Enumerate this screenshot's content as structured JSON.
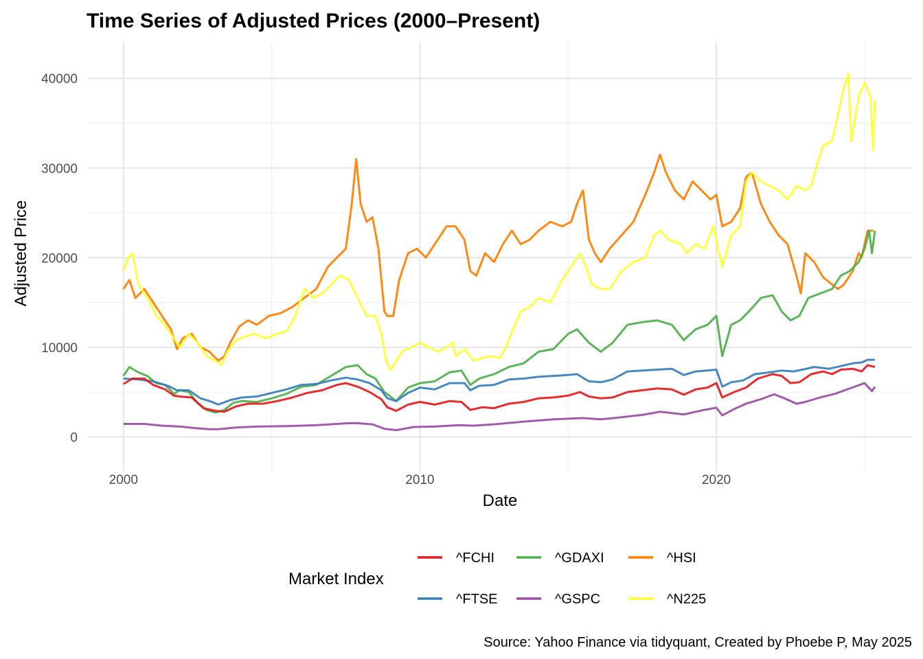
{
  "chart_data": {
    "type": "line",
    "title": "Time Series of Adjusted Prices (2000–Present)",
    "xlabel": "Date",
    "ylabel": "Adjusted Price",
    "xlim": [
      1998.8,
      2026.6
    ],
    "ylim": [
      -3800,
      44000
    ],
    "x_ticks": [
      2000,
      2010,
      2020
    ],
    "x_tick_labels": [
      "2000",
      "2010",
      "2020"
    ],
    "y_ticks": [
      0,
      10000,
      20000,
      30000,
      40000
    ],
    "y_tick_labels": [
      "0",
      "10000",
      "20000",
      "30000",
      "40000"
    ],
    "grid": true,
    "legend": {
      "title": "Market Index",
      "position": "bottom",
      "entries": [
        "^FCHI",
        "^GDAXI",
        "^HSI",
        "^FTSE",
        "^GSPC",
        "^N225"
      ]
    },
    "caption": "Source: Yahoo Finance via tidyquant, Created by Phoebe P, May 2025",
    "series": [
      {
        "name": "^HSI",
        "color": "#ff7f00",
        "x": [
          2000.0,
          2000.2,
          2000.4,
          2000.7,
          2001.0,
          2001.3,
          2001.6,
          2001.8,
          2002.0,
          2002.3,
          2002.6,
          2002.9,
          2003.2,
          2003.4,
          2003.6,
          2003.9,
          2004.2,
          2004.5,
          2004.9,
          2005.3,
          2005.7,
          2006.1,
          2006.5,
          2006.9,
          2007.2,
          2007.5,
          2007.7,
          2007.85,
          2008.0,
          2008.2,
          2008.4,
          2008.6,
          2008.8,
          2008.9,
          2009.1,
          2009.3,
          2009.6,
          2009.9,
          2010.2,
          2010.5,
          2010.9,
          2011.2,
          2011.5,
          2011.7,
          2011.9,
          2012.2,
          2012.5,
          2012.8,
          2013.1,
          2013.4,
          2013.7,
          2014.0,
          2014.4,
          2014.8,
          2015.1,
          2015.3,
          2015.5,
          2015.7,
          2015.9,
          2016.1,
          2016.4,
          2016.8,
          2017.2,
          2017.6,
          2017.9,
          2018.1,
          2018.3,
          2018.6,
          2018.9,
          2019.2,
          2019.5,
          2019.8,
          2020.0,
          2020.2,
          2020.5,
          2020.8,
          2021.0,
          2021.2,
          2021.5,
          2021.8,
          2022.1,
          2022.4,
          2022.7,
          2022.85,
          2023.0,
          2023.3,
          2023.6,
          2023.9,
          2024.1,
          2024.3,
          2024.6,
          2024.8,
          2024.9,
          2025.1,
          2025.3
        ],
        "y": [
          16500,
          17500,
          15500,
          16500,
          15000,
          13500,
          12000,
          9800,
          11000,
          11500,
          10000,
          9500,
          8500,
          9000,
          10500,
          12300,
          13000,
          12500,
          13500,
          13800,
          14500,
          15500,
          16500,
          19000,
          20000,
          21000,
          26000,
          31000,
          26000,
          24000,
          24500,
          21000,
          14000,
          13500,
          13500,
          17500,
          20500,
          21000,
          20000,
          21500,
          23500,
          23500,
          22000,
          18500,
          18000,
          20500,
          19500,
          21500,
          23000,
          21500,
          22000,
          23000,
          24000,
          23500,
          24000,
          26000,
          27500,
          22000,
          20500,
          19500,
          21000,
          22500,
          24000,
          27000,
          29500,
          31500,
          29500,
          27500,
          26500,
          28500,
          27500,
          26500,
          27000,
          23500,
          24000,
          25500,
          29000,
          29500,
          26000,
          24000,
          22500,
          21500,
          18000,
          16000,
          20500,
          19500,
          17800,
          17000,
          16500,
          17000,
          18500,
          20500,
          20000,
          23000,
          23000
        ]
      },
      {
        "name": "^N225",
        "color": "#ffff33",
        "x": [
          2000.0,
          2000.15,
          2000.3,
          2000.5,
          2000.7,
          2000.9,
          2001.1,
          2001.4,
          2001.7,
          2001.9,
          2002.2,
          2002.5,
          2002.8,
          2003.1,
          2003.3,
          2003.5,
          2003.8,
          2004.1,
          2004.4,
          2004.8,
          2005.2,
          2005.5,
          2005.8,
          2006.1,
          2006.4,
          2006.7,
          2007.0,
          2007.3,
          2007.6,
          2007.9,
          2008.2,
          2008.5,
          2008.7,
          2008.85,
          2009.0,
          2009.2,
          2009.4,
          2009.7,
          2010.0,
          2010.3,
          2010.6,
          2010.9,
          2011.1,
          2011.2,
          2011.5,
          2011.8,
          2012.1,
          2012.4,
          2012.7,
          2012.9,
          2013.2,
          2013.4,
          2013.7,
          2014.0,
          2014.4,
          2014.8,
          2015.1,
          2015.4,
          2015.6,
          2015.8,
          2016.1,
          2016.4,
          2016.8,
          2017.2,
          2017.6,
          2017.9,
          2018.1,
          2018.4,
          2018.8,
          2019.0,
          2019.3,
          2019.6,
          2019.9,
          2020.05,
          2020.2,
          2020.5,
          2020.8,
          2021.0,
          2021.2,
          2021.5,
          2021.8,
          2022.1,
          2022.4,
          2022.7,
          2023.0,
          2023.2,
          2023.4,
          2023.6,
          2023.9,
          2024.1,
          2024.3,
          2024.45,
          2024.55,
          2024.8,
          2025.0,
          2025.2,
          2025.28,
          2025.35
        ],
        "y": [
          18500,
          20000,
          20500,
          17000,
          16000,
          15000,
          13500,
          12500,
          11000,
          10000,
          11500,
          10500,
          9000,
          8500,
          8000,
          9500,
          10800,
          11200,
          11500,
          11000,
          11500,
          11800,
          13500,
          16500,
          15500,
          16000,
          17000,
          18000,
          17500,
          15500,
          13500,
          13500,
          11500,
          8500,
          7500,
          8500,
          9500,
          10000,
          10500,
          10000,
          9500,
          10000,
          10500,
          9000,
          9800,
          8500,
          8800,
          9000,
          8800,
          10000,
          12500,
          14000,
          14500,
          15500,
          15000,
          17500,
          19000,
          20500,
          19000,
          17000,
          16500,
          16500,
          18500,
          19500,
          20000,
          22500,
          23000,
          22000,
          21500,
          20500,
          21500,
          21000,
          23500,
          21000,
          19000,
          22500,
          23500,
          28500,
          29500,
          28500,
          28000,
          27500,
          26500,
          28000,
          27500,
          28000,
          30500,
          32500,
          33000,
          36000,
          39000,
          40500,
          33000,
          38000,
          39500,
          38000,
          32000,
          37500
        ]
      },
      {
        "name": "^GDAXI",
        "color": "#4daf4a",
        "x": [
          2000.0,
          2000.2,
          2000.5,
          2000.8,
          2001.1,
          2001.4,
          2001.7,
          2001.9,
          2002.2,
          2002.5,
          2002.8,
          2003.1,
          2003.4,
          2003.7,
          2004.0,
          2004.5,
          2005.0,
          2005.5,
          2006.0,
          2006.5,
          2007.0,
          2007.5,
          2007.9,
          2008.2,
          2008.5,
          2008.8,
          2009.2,
          2009.6,
          2010.0,
          2010.5,
          2011.0,
          2011.4,
          2011.7,
          2012.0,
          2012.5,
          2013.0,
          2013.5,
          2014.0,
          2014.5,
          2015.0,
          2015.3,
          2015.7,
          2016.1,
          2016.5,
          2017.0,
          2017.5,
          2018.0,
          2018.5,
          2018.9,
          2019.3,
          2019.7,
          2020.0,
          2020.2,
          2020.5,
          2020.8,
          2021.1,
          2021.5,
          2021.9,
          2022.2,
          2022.5,
          2022.8,
          2023.1,
          2023.5,
          2023.9,
          2024.2,
          2024.5,
          2024.8,
          2025.0,
          2025.15,
          2025.25,
          2025.35
        ],
        "y": [
          6800,
          7800,
          7200,
          6800,
          6000,
          5800,
          4800,
          5200,
          5000,
          3800,
          3000,
          2700,
          3000,
          3800,
          4000,
          3900,
          4300,
          4800,
          5600,
          5800,
          6800,
          7800,
          8000,
          7000,
          6500,
          5000,
          4000,
          5500,
          6000,
          6200,
          7200,
          7400,
          5800,
          6500,
          7000,
          7800,
          8200,
          9500,
          9800,
          11500,
          12000,
          10500,
          9500,
          10500,
          12500,
          12800,
          13000,
          12500,
          10800,
          12000,
          12500,
          13500,
          9000,
          12500,
          13000,
          14000,
          15500,
          15800,
          14000,
          13000,
          13500,
          15500,
          16000,
          16500,
          18000,
          18500,
          19500,
          21000,
          23000,
          20500,
          23000
        ]
      },
      {
        "name": "^FTSE",
        "color": "#377eb8",
        "x": [
          2000.0,
          2000.5,
          2001.0,
          2001.5,
          2001.8,
          2002.2,
          2002.6,
          2002.9,
          2003.2,
          2003.6,
          2004.0,
          2004.5,
          2005.0,
          2005.5,
          2006.0,
          2006.5,
          2007.0,
          2007.5,
          2007.9,
          2008.3,
          2008.7,
          2008.9,
          2009.2,
          2009.6,
          2010.0,
          2010.5,
          2011.0,
          2011.5,
          2011.7,
          2012.0,
          2012.5,
          2013.0,
          2013.5,
          2014.0,
          2014.5,
          2015.0,
          2015.3,
          2015.7,
          2016.1,
          2016.5,
          2017.0,
          2017.5,
          2018.0,
          2018.5,
          2018.9,
          2019.3,
          2019.7,
          2020.0,
          2020.2,
          2020.5,
          2020.9,
          2021.3,
          2021.8,
          2022.2,
          2022.6,
          2022.9,
          2023.3,
          2023.8,
          2024.2,
          2024.6,
          2024.9,
          2025.1,
          2025.35
        ],
        "y": [
          6500,
          6400,
          6200,
          5700,
          5200,
          5200,
          4300,
          4000,
          3600,
          4100,
          4400,
          4500,
          4900,
          5300,
          5800,
          5900,
          6300,
          6600,
          6400,
          6000,
          5200,
          4300,
          4000,
          4900,
          5500,
          5300,
          6000,
          6000,
          5200,
          5700,
          5800,
          6400,
          6500,
          6700,
          6800,
          6900,
          7000,
          6200,
          6100,
          6400,
          7300,
          7400,
          7500,
          7600,
          6900,
          7300,
          7400,
          7500,
          5600,
          6100,
          6300,
          7000,
          7200,
          7400,
          7300,
          7500,
          7800,
          7600,
          7900,
          8200,
          8300,
          8600,
          8600
        ]
      },
      {
        "name": "^FCHI",
        "color": "#e41a1c",
        "x": [
          2000.0,
          2000.3,
          2000.7,
          2001.0,
          2001.4,
          2001.7,
          2001.9,
          2002.3,
          2002.7,
          2003.1,
          2003.4,
          2003.8,
          2004.2,
          2004.7,
          2005.2,
          2005.7,
          2006.2,
          2006.7,
          2007.2,
          2007.5,
          2007.9,
          2008.3,
          2008.7,
          2008.9,
          2009.2,
          2009.6,
          2010.0,
          2010.5,
          2011.0,
          2011.4,
          2011.7,
          2012.1,
          2012.5,
          2013.0,
          2013.5,
          2014.0,
          2014.5,
          2015.0,
          2015.4,
          2015.7,
          2016.1,
          2016.5,
          2017.0,
          2017.5,
          2018.0,
          2018.5,
          2018.9,
          2019.3,
          2019.7,
          2020.0,
          2020.2,
          2020.6,
          2021.0,
          2021.4,
          2021.9,
          2022.2,
          2022.5,
          2022.8,
          2023.2,
          2023.6,
          2023.9,
          2024.2,
          2024.6,
          2024.9,
          2025.1,
          2025.35
        ],
        "y": [
          5900,
          6500,
          6500,
          5800,
          5300,
          4600,
          4500,
          4400,
          3200,
          2900,
          2800,
          3400,
          3700,
          3700,
          4000,
          4400,
          4900,
          5200,
          5800,
          6000,
          5600,
          5000,
          4200,
          3300,
          2900,
          3600,
          3900,
          3600,
          4000,
          3900,
          3000,
          3300,
          3200,
          3700,
          3900,
          4300,
          4400,
          4600,
          5000,
          4500,
          4300,
          4400,
          5000,
          5200,
          5400,
          5300,
          4700,
          5300,
          5500,
          6000,
          4400,
          5000,
          5500,
          6500,
          7000,
          6800,
          6000,
          6100,
          7000,
          7300,
          7000,
          7500,
          7600,
          7300,
          8000,
          7800
        ]
      },
      {
        "name": "^GSPC",
        "color": "#984ea3",
        "x": [
          2000.0,
          2000.7,
          2001.3,
          2001.9,
          2002.5,
          2002.9,
          2003.2,
          2003.8,
          2004.5,
          2005.5,
          2006.5,
          2007.5,
          2007.8,
          2008.4,
          2008.8,
          2009.2,
          2009.8,
          2010.5,
          2011.3,
          2011.8,
          2012.5,
          2013.5,
          2014.5,
          2015.5,
          2016.1,
          2016.7,
          2017.5,
          2018.1,
          2018.9,
          2019.5,
          2020.0,
          2020.2,
          2020.6,
          2021.0,
          2021.5,
          2021.95,
          2022.3,
          2022.7,
          2023.0,
          2023.5,
          2024.0,
          2024.5,
          2025.0,
          2025.25,
          2025.35
        ],
        "y": [
          1450,
          1450,
          1250,
          1150,
          950,
          850,
          850,
          1050,
          1150,
          1200,
          1300,
          1500,
          1550,
          1400,
          900,
          750,
          1100,
          1150,
          1300,
          1250,
          1400,
          1700,
          1950,
          2100,
          1950,
          2150,
          2450,
          2800,
          2500,
          2950,
          3250,
          2400,
          3100,
          3700,
          4200,
          4750,
          4300,
          3700,
          3900,
          4400,
          4800,
          5400,
          6000,
          5100,
          5600
        ]
      }
    ]
  }
}
